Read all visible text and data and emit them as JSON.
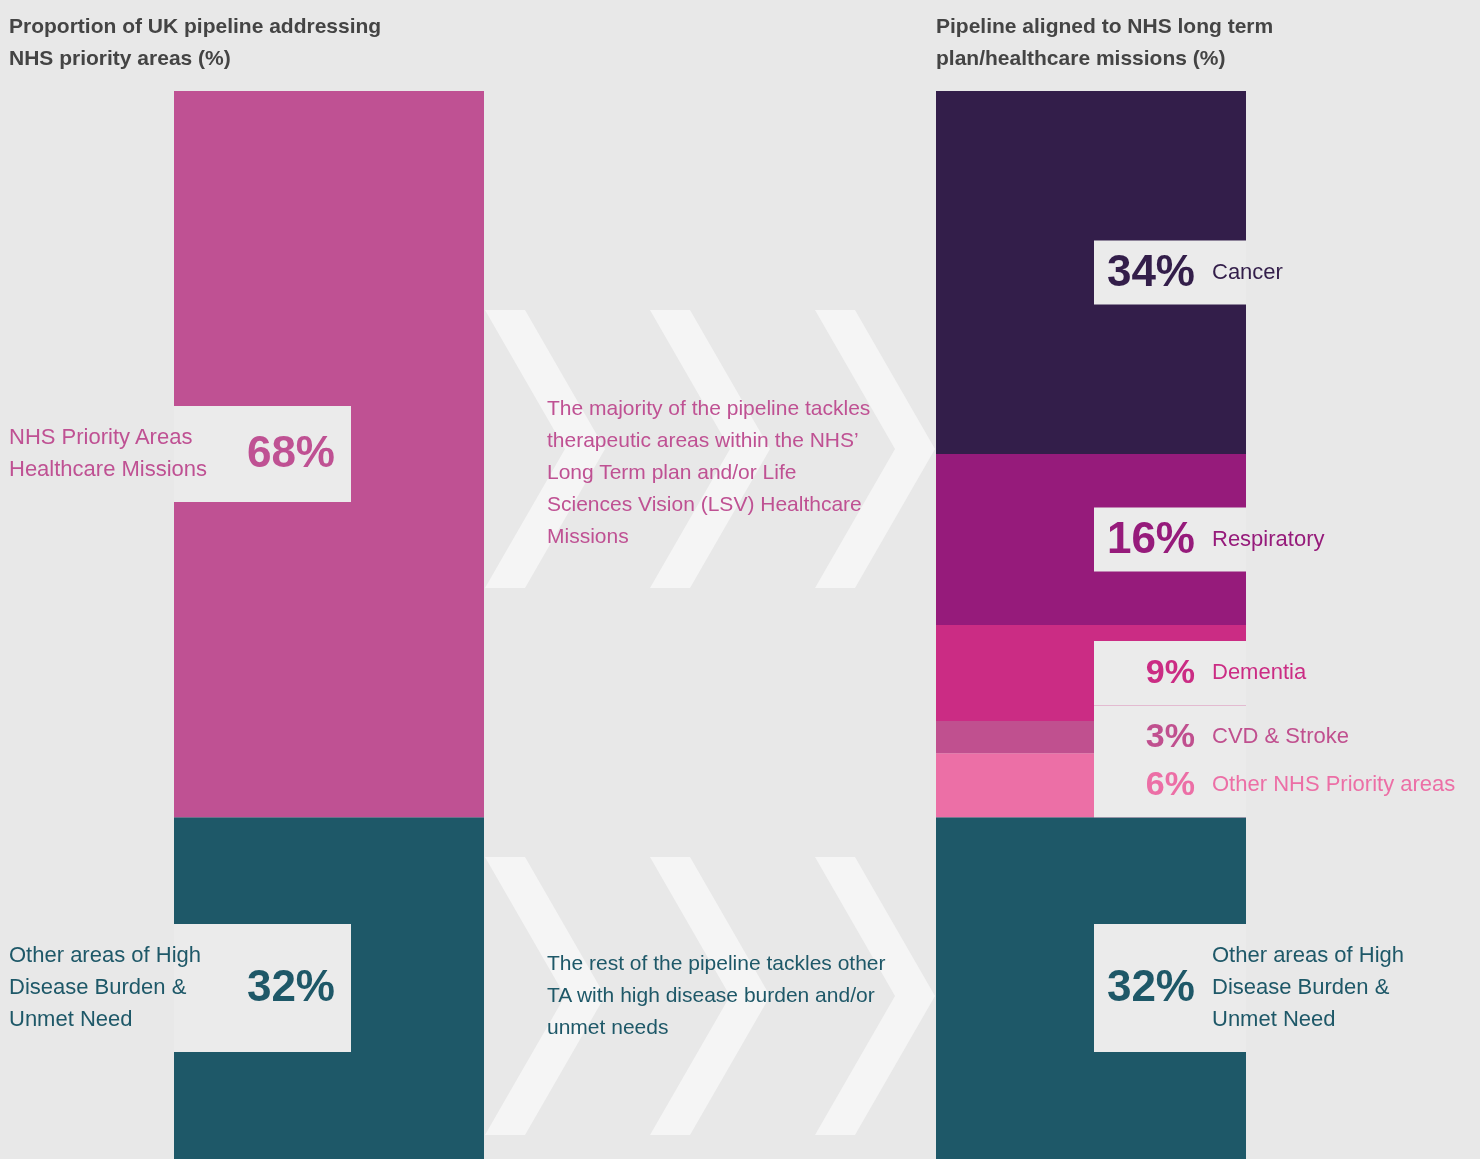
{
  "chart_data": [
    {
      "type": "bar",
      "stacked": true,
      "title": "Proportion of UK pipeline addressing NHS priority areas (%)",
      "categories": [
        null
      ],
      "series": [
        {
          "name": "Other areas of High Disease Burden & Unmet Need",
          "color": "#1e5868",
          "values": [
            32
          ],
          "value_labels": [
            "32%"
          ]
        },
        {
          "name": "NHS Priority Areas Healthcare Missions",
          "color": "#bf5193",
          "values": [
            68
          ],
          "value_labels": [
            "68%"
          ]
        }
      ],
      "annotations": [
        "The rest of the pipeline tackles other TA with high disease burden and/or unmet needs",
        "The majority of the pipeline tackles therapeutic areas within the NHS’ Long Term plan and/or Life Sciences Vision (LSV) Healthcare Missions"
      ]
    },
    {
      "type": "bar",
      "stacked": true,
      "title": "Pipeline aligned to NHS long term plan/healthcare missions (%)",
      "categories": [
        null
      ],
      "series": [
        {
          "name": "Other areas of High Disease Burden & Unmet Need",
          "color": "#1e5868",
          "values": [
            32
          ],
          "value_labels": [
            "32%"
          ]
        },
        {
          "name": "Other NHS Priority areas",
          "color": "#ec6fa6",
          "values": [
            6
          ],
          "value_labels": [
            "6%"
          ]
        },
        {
          "name": "CVD & Stroke",
          "color": "#c0508f",
          "values": [
            3
          ],
          "value_labels": [
            "3%"
          ]
        },
        {
          "name": "Dementia",
          "color": "#cb2c84",
          "values": [
            9
          ],
          "value_labels": [
            "9%"
          ]
        },
        {
          "name": "Respiratory",
          "color": "#961b7b",
          "values": [
            16
          ],
          "value_labels": [
            "16%"
          ]
        },
        {
          "name": "Cancer",
          "color": "#331e4a",
          "values": [
            34
          ],
          "value_labels": [
            "34%"
          ]
        }
      ]
    }
  ]
}
